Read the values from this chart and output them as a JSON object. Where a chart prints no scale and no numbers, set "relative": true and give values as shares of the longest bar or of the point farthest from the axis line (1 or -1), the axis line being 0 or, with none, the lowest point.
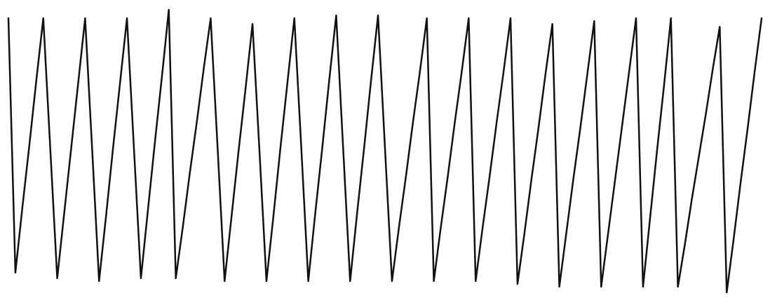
{
  "chart_data": {
    "type": "line",
    "relative": true,
    "categories": [
      null,
      null,
      null,
      null,
      null,
      null,
      null,
      null,
      null,
      null,
      null,
      null,
      null,
      null,
      null,
      null,
      null,
      null,
      null,
      null,
      null,
      null,
      null,
      null,
      null,
      null,
      null,
      null,
      null,
      null,
      null,
      null,
      null,
      null,
      null,
      null,
      null,
      null,
      null,
      null,
      null,
      null,
      null,
      null,
      null,
      null,
      null,
      null,
      null,
      null,
      null,
      null,
      null,
      null,
      null,
      null,
      null,
      null,
      null,
      null,
      null,
      null,
      null,
      null,
      null,
      null,
      null,
      null,
      null,
      null,
      null,
      null,
      null,
      null,
      null,
      null,
      null,
      null,
      null,
      null,
      null,
      null,
      null,
      null,
      null,
      null,
      null,
      null,
      null,
      null,
      null,
      null,
      null,
      null,
      null,
      null,
      null,
      null,
      null,
      null,
      null,
      null,
      null,
      null,
      null,
      null,
      null,
      null,
      null
    ],
    "series": [
      {
        "color": "#111111",
        "values": [
          0.97,
          0.07,
          0.3,
          0.52,
          0.75,
          0.97,
          0.51,
          0.05,
          0.28,
          0.51,
          0.74,
          0.97,
          0.51,
          0.04,
          0.27,
          0.51,
          0.74,
          0.97,
          0.51,
          0.05,
          0.29,
          0.53,
          0.76,
          1,
          0.05,
          0.23,
          0.42,
          0.6,
          0.79,
          0.97,
          0.51,
          0.04,
          0.27,
          0.5,
          0.72,
          0.95,
          0.5,
          0.04,
          0.27,
          0.51,
          0.74,
          0.97,
          0.51,
          0.04,
          0.28,
          0.51,
          0.75,
          0.98,
          0.51,
          0.04,
          0.28,
          0.51,
          0.75,
          0.98,
          0.51,
          0.04,
          0.23,
          0.41,
          0.6,
          0.78,
          0.97,
          0.04,
          0.23,
          0.41,
          0.6,
          0.78,
          0.97,
          0.04,
          0.23,
          0.41,
          0.6,
          0.78,
          0.97,
          0.03,
          0.21,
          0.4,
          0.58,
          0.77,
          0.95,
          0.02,
          0.21,
          0.4,
          0.58,
          0.77,
          0.96,
          0.02,
          0.21,
          0.4,
          0.59,
          0.78,
          0.97,
          0.02,
          0.26,
          0.5,
          0.73,
          0.97,
          0.02,
          0.17,
          0.33,
          0.48,
          0.63,
          0.79,
          0.94,
          0,
          0.19,
          0.39,
          0.58,
          0.78,
          0.97
        ]
      }
    ]
  }
}
